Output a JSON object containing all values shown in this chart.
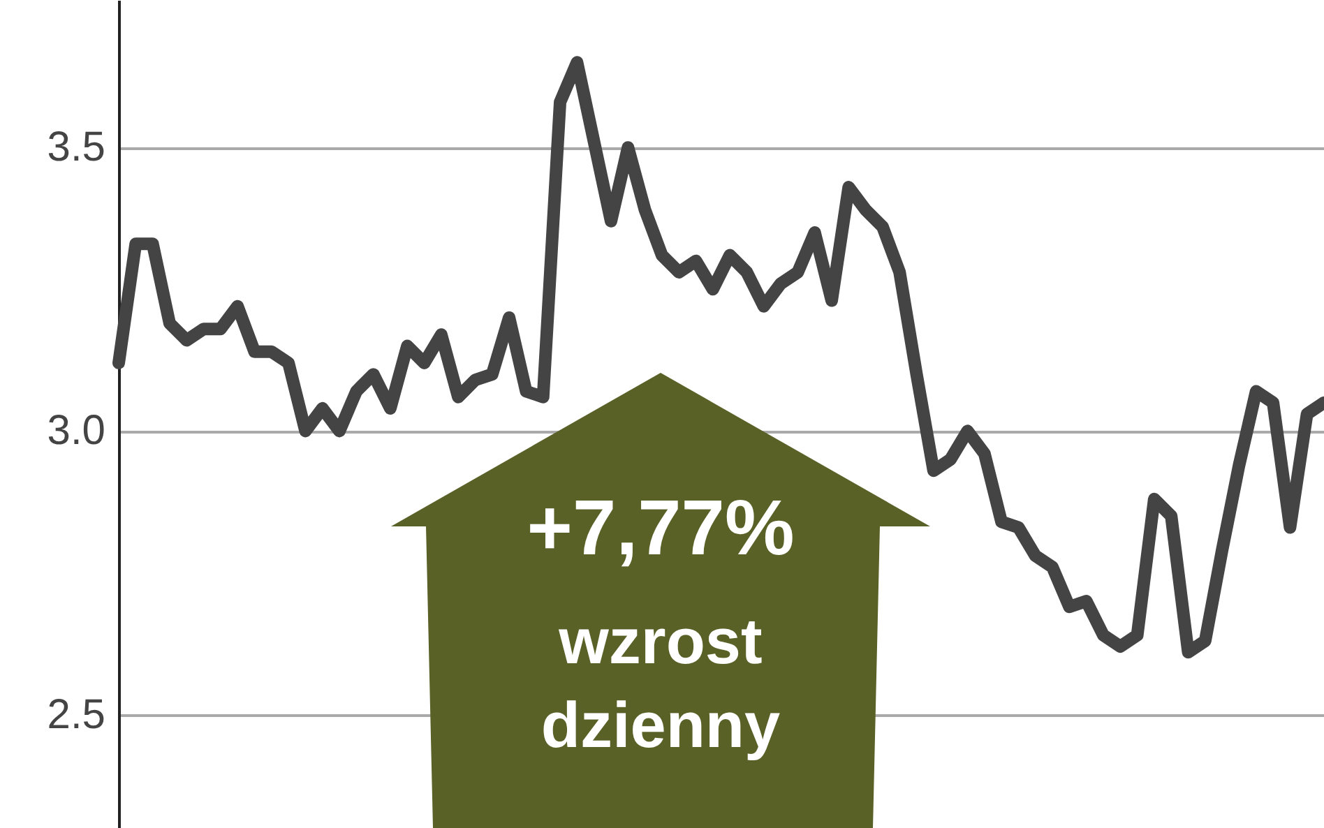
{
  "chart_data": {
    "type": "line",
    "categories": [
      null,
      null,
      null,
      null,
      null,
      null,
      null,
      null,
      null,
      null,
      null,
      null,
      null,
      null,
      null,
      null,
      null,
      null,
      null,
      null,
      null,
      null,
      null,
      null,
      null,
      null,
      null,
      null,
      null,
      null,
      null,
      null,
      null,
      null,
      null,
      null,
      null,
      null,
      null,
      null,
      null,
      null,
      null,
      null,
      null,
      null,
      null,
      null,
      null,
      null,
      null,
      null,
      null,
      null,
      null,
      null,
      null,
      null,
      null,
      null,
      null,
      null,
      null,
      null,
      null,
      null,
      null,
      null,
      null,
      null,
      null,
      null
    ],
    "series": [
      {
        "color": "#444444",
        "values": [
          3.12,
          3.33,
          3.33,
          3.19,
          3.16,
          3.18,
          3.18,
          3.22,
          3.14,
          3.14,
          3.12,
          3.0,
          3.04,
          3.0,
          3.07,
          3.1,
          3.04,
          3.15,
          3.12,
          3.17,
          3.06,
          3.09,
          3.1,
          3.2,
          3.07,
          3.06,
          3.58,
          3.65,
          3.51,
          3.37,
          3.5,
          3.39,
          3.31,
          3.28,
          3.3,
          3.25,
          3.31,
          3.28,
          3.22,
          3.26,
          3.28,
          3.35,
          3.23,
          3.43,
          3.39,
          3.36,
          3.28,
          3.1,
          2.93,
          2.95,
          3.0,
          2.96,
          2.84,
          2.83,
          2.78,
          2.76,
          2.69,
          2.7,
          2.64,
          2.62,
          2.64,
          2.88,
          2.85,
          2.61,
          2.63,
          2.79,
          2.94,
          3.07,
          3.05,
          2.83,
          3.03,
          3.05
        ]
      }
    ],
    "ylim": [
      2.3,
      3.76
    ],
    "yticks": [
      {
        "value": 2.5,
        "label": "2.5"
      },
      {
        "value": 3,
        "label": "3.0"
      },
      {
        "value": 3.5,
        "label": "3.5"
      }
    ],
    "grid": "y",
    "line_style": "solid",
    "annotations": [
      "+7,77%",
      "wzrost",
      "dzienny"
    ]
  }
}
